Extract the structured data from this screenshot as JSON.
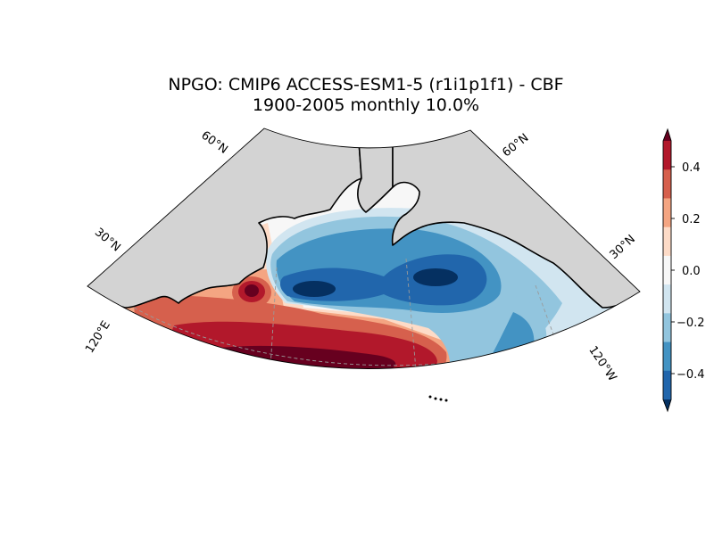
{
  "figure": {
    "title_line1": "NPGO: CMIP6 ACCESS-ESM1-5 (r1i1p1f1) - CBF",
    "title_line2": "1900-2005 monthly 10.0%"
  },
  "map": {
    "projection": "conic (North Pacific sector)",
    "land_color": "#d3d3d3",
    "ocean_background": "#f7f7f7",
    "graticule_color": "#9a9a9a",
    "lat_labels": [
      "60°N",
      "30°N",
      "60°N",
      "30°N"
    ],
    "lon_labels": [
      "120°E",
      "120°W"
    ]
  },
  "colorbar": {
    "ticks": [
      "0.4",
      "0.2",
      "0.0",
      "−0.2",
      "−0.4"
    ],
    "levels": [
      {
        "color": "#67001f",
        "range": "> 0.5"
      },
      {
        "color": "#b2182b",
        "range": "0.4 – 0.5"
      },
      {
        "color": "#d6604d",
        "range": "0.3 – 0.4"
      },
      {
        "color": "#f4a582",
        "range": "0.2 – 0.3"
      },
      {
        "color": "#fddbc7",
        "range": "0.1 – 0.2"
      },
      {
        "color": "#f7f7f7",
        "range": "−0.1 – 0.1"
      },
      {
        "color": "#d1e5f0",
        "range": "−0.2 – −0.1"
      },
      {
        "color": "#92c5de",
        "range": "−0.3 – −0.2"
      },
      {
        "color": "#4393c3",
        "range": "−0.4 – −0.3"
      },
      {
        "color": "#2166ac",
        "range": "−0.5 – −0.4"
      },
      {
        "color": "#053061",
        "range": "< −0.5"
      }
    ]
  }
}
